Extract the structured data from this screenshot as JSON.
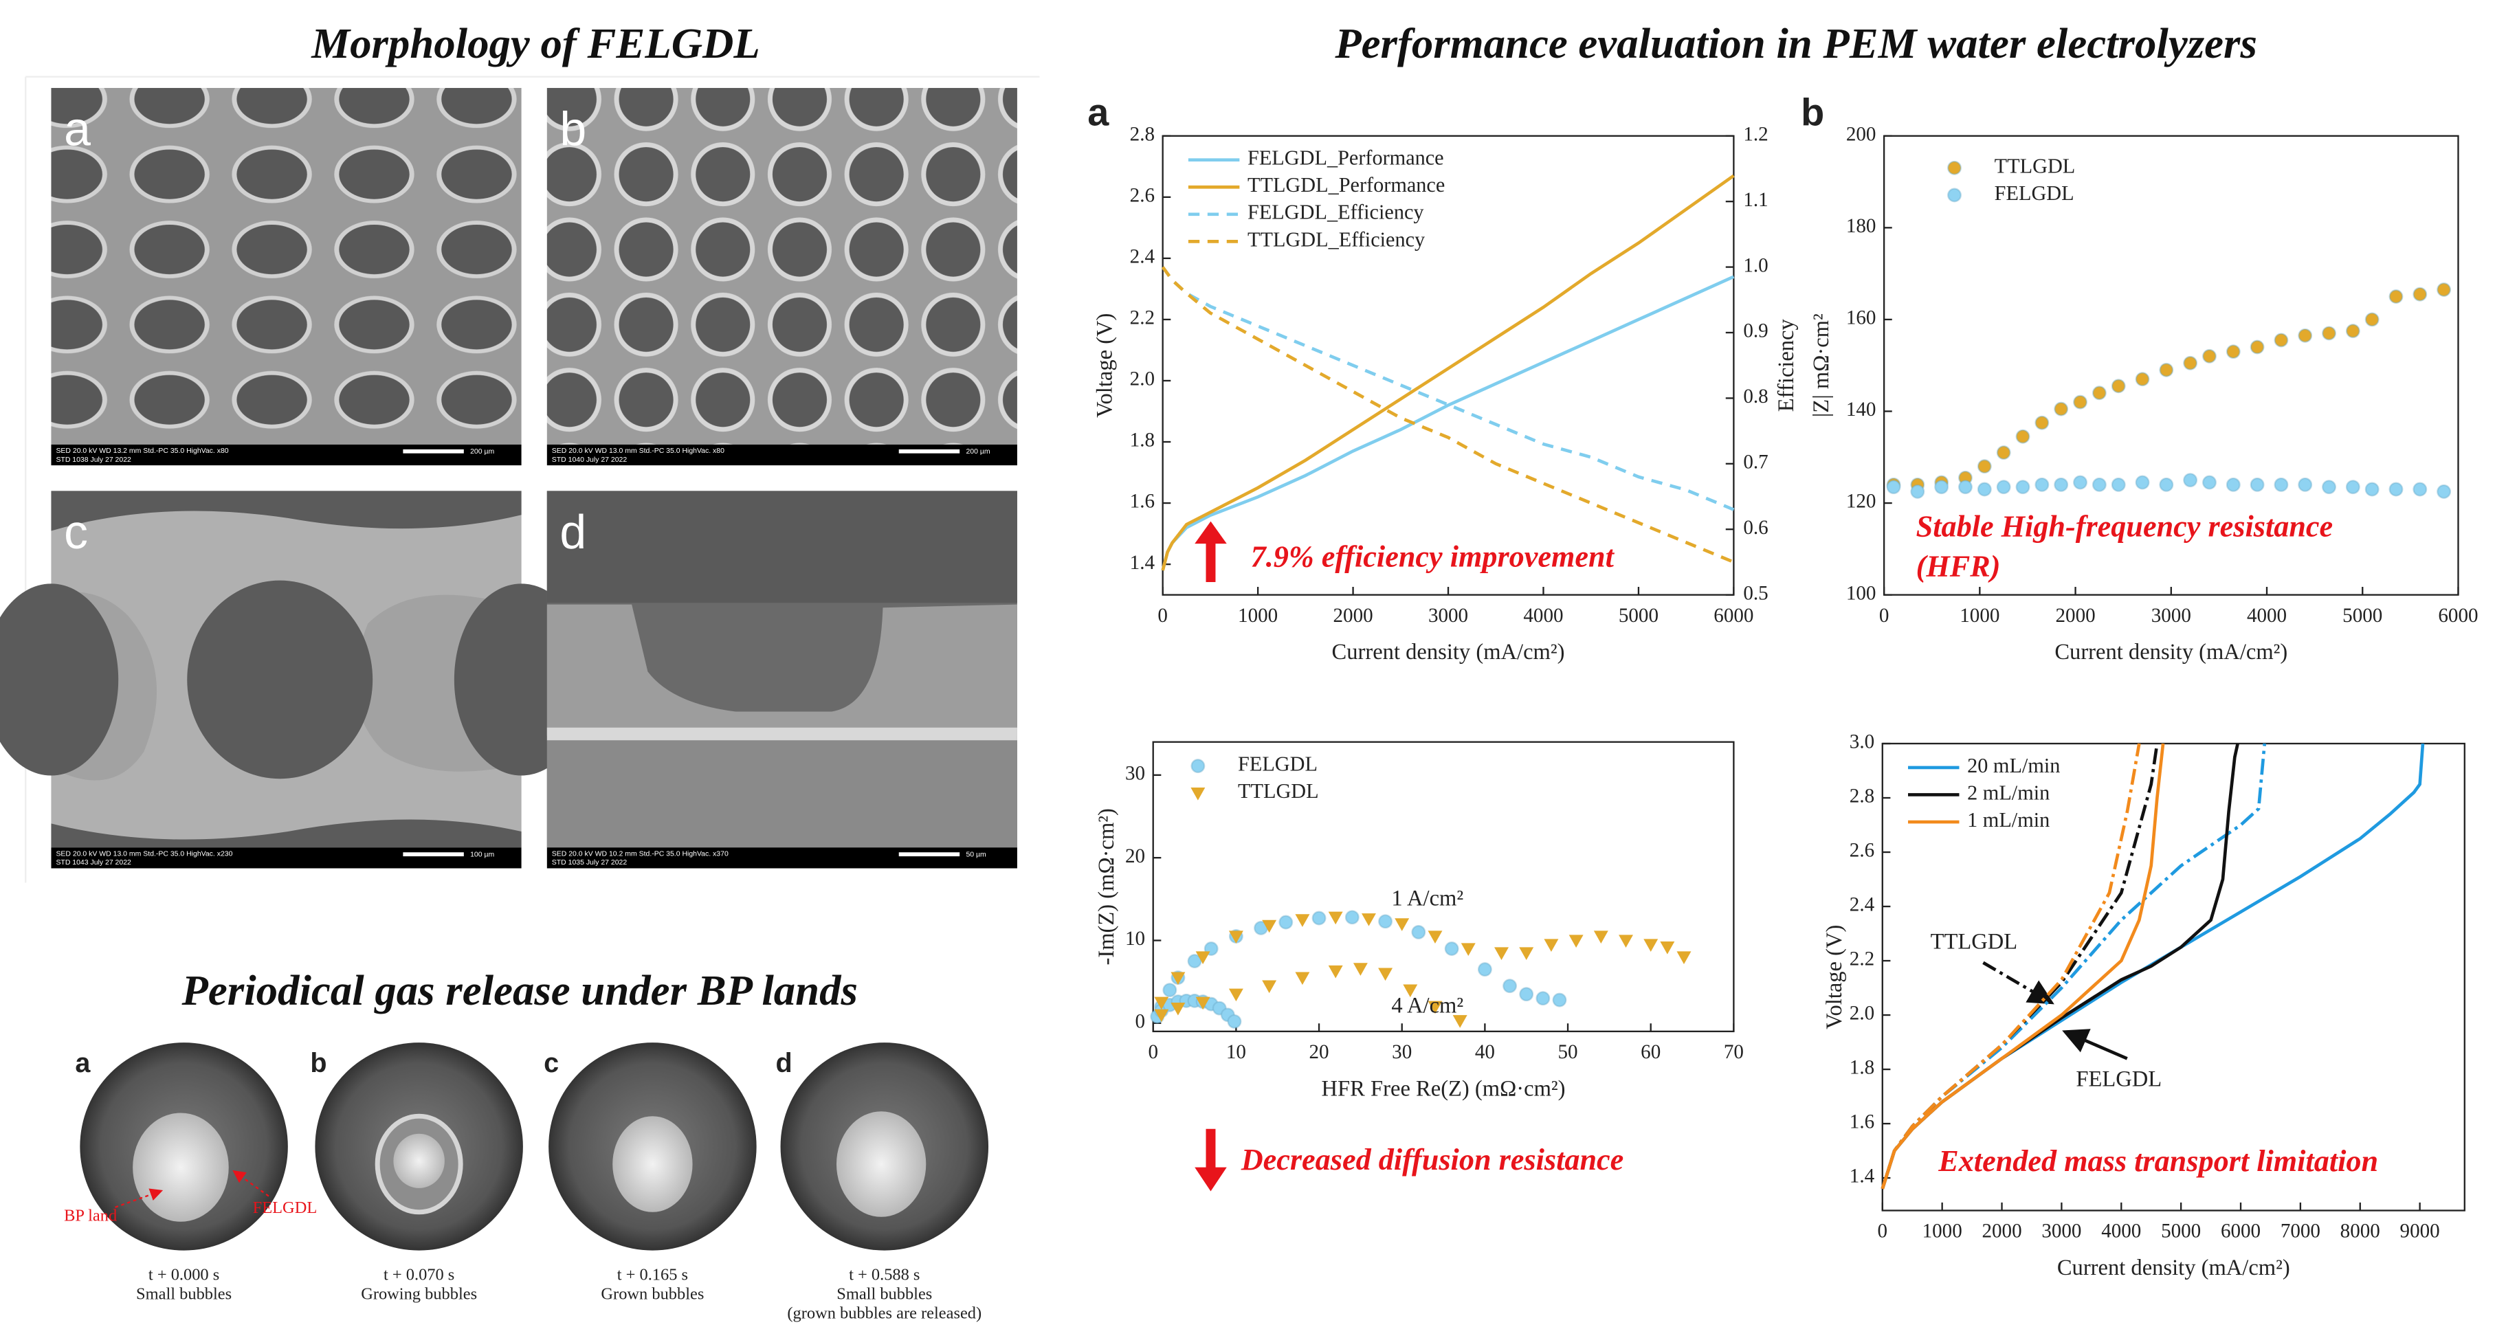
{
  "headings": {
    "morphology": "Morphology of FELGDL",
    "performance": "Performance evaluation in PEM water electrolyzers",
    "gas_release": "Periodical gas release under BP lands"
  },
  "sem_panels": [
    {
      "label": "a",
      "info": "SED 20.0 kV WD 13.2 mm Std.-PC 35.0 HighVac. x80",
      "id_date": "STD 1038 July 27 2022",
      "scale": "200 µm"
    },
    {
      "label": "b",
      "info": "SED 20.0 kV WD 13.0 mm Std.-PC 35.0 HighVac. x80",
      "id_date": "STD 1040 July 27 2022",
      "scale": "200 µm"
    },
    {
      "label": "c",
      "info": "SED 20.0 kV WD 13.0 mm Std.-PC 35.0 HighVac. x230",
      "id_date": "STD 1043 July 27 2022",
      "scale": "100 µm"
    },
    {
      "label": "d",
      "info": "SED 20.0 kV WD 10.2 mm Std.-PC 35.0 HighVac. x370",
      "id_date": "STD 1035 July 27 2022",
      "scale": "50 µm"
    }
  ],
  "gas_frames": [
    {
      "label": "a",
      "time": "t + 0.000 s",
      "caption": [
        "Small bubbles"
      ]
    },
    {
      "label": "b",
      "time": "t + 0.070 s",
      "caption": [
        "Growing bubbles"
      ]
    },
    {
      "label": "c",
      "time": "t + 0.165 s",
      "caption": [
        "Grown bubbles"
      ]
    },
    {
      "label": "d",
      "time": "t + 0.588 s",
      "caption": [
        "Small bubbles",
        "(grown bubbles are released)"
      ]
    }
  ],
  "gas_annotations": {
    "bp_land": "BP land",
    "felgdl": "FELGDL"
  },
  "chart_data": [
    {
      "type": "line",
      "panel_label": "a",
      "x_label": "Current density (mA/cm²)",
      "y_label": "Voltage (V)",
      "y2_label": "Efficiency",
      "legend": "upper left",
      "x": [
        0,
        50,
        100,
        250,
        500,
        1000,
        1500,
        2000,
        2500,
        3000,
        3500,
        4000,
        4500,
        5000,
        5500,
        6000
      ],
      "series": [
        {
          "name": "FELGDL_Performance",
          "color": "#7fcdee",
          "style": "solid",
          "values": [
            1.38,
            1.44,
            1.47,
            1.52,
            1.56,
            1.62,
            1.69,
            1.77,
            1.84,
            1.92,
            1.99,
            2.06,
            2.13,
            2.2,
            2.27,
            2.34
          ]
        },
        {
          "name": "TTLGDL_Performance",
          "color": "#e3a92b",
          "style": "solid",
          "values": [
            1.38,
            1.44,
            1.47,
            1.53,
            1.57,
            1.65,
            1.74,
            1.84,
            1.94,
            2.04,
            2.14,
            2.24,
            2.35,
            2.45,
            2.56,
            2.67
          ]
        },
        {
          "name": "FELGDL_Efficiency",
          "color": "#7fcdee",
          "style": "dashed",
          "axis": "y2",
          "values": [
            1.0,
            0.99,
            0.98,
            0.96,
            0.94,
            0.91,
            0.88,
            0.85,
            0.82,
            0.79,
            0.76,
            0.73,
            0.71,
            0.68,
            0.66,
            0.63
          ]
        },
        {
          "name": "TTLGDL_Efficiency",
          "color": "#e3a92b",
          "style": "dashed",
          "axis": "y2",
          "values": [
            1.0,
            0.99,
            0.98,
            0.96,
            0.93,
            0.89,
            0.85,
            0.81,
            0.77,
            0.74,
            0.7,
            0.67,
            0.64,
            0.61,
            0.58,
            0.55
          ]
        }
      ],
      "xlim": [
        0,
        6000
      ],
      "xticks": [
        0,
        1000,
        2000,
        3000,
        4000,
        5000,
        6000
      ],
      "ylim": [
        1.3,
        2.8
      ],
      "yticks": [
        1.4,
        1.6,
        1.8,
        {
          "value": 2,
          "label": "2.0"
        },
        2.2,
        2.4,
        2.6,
        2.8
      ],
      "y2lim": [
        0.5,
        1.2
      ],
      "y2ticks": [
        0.5,
        0.6,
        0.7,
        0.8,
        0.9,
        {
          "value": 1,
          "label": "1.0"
        },
        1.1,
        1.2
      ],
      "annotations": [
        {
          "text": "7.9% efficiency improvement",
          "color": "#e8141b"
        }
      ]
    },
    {
      "type": "scatter",
      "panel_label": "b",
      "x_label": "Current density (mA/cm²)",
      "y_label": "|Z| mΩ·cm²",
      "legend": "upper left",
      "x": [
        100,
        350,
        600,
        850,
        1050,
        1250,
        1450,
        1650,
        1850,
        2050,
        2250,
        2450,
        2700,
        2950,
        3200,
        3400,
        3650,
        3900,
        4150,
        4400,
        4650,
        4900,
        5100,
        5350,
        5600,
        5850
      ],
      "series": [
        {
          "name": "TTLGDL",
          "color": "#e3a92b",
          "marker": "circle",
          "values": [
            124,
            124,
            124.5,
            125.5,
            128,
            131,
            134.5,
            137.5,
            140.5,
            142,
            144,
            145.5,
            147,
            149,
            150.5,
            152,
            153,
            154,
            155.5,
            156.5,
            157,
            157.5,
            160,
            165,
            165.5,
            166.5
          ]
        },
        {
          "name": "FELGDL",
          "color": "#8fd3f2",
          "marker": "circle",
          "values": [
            123.5,
            122.5,
            123.5,
            123.5,
            123,
            123.5,
            123.5,
            124,
            124,
            124.5,
            124,
            124,
            124.5,
            124,
            125,
            124.5,
            124,
            124,
            124,
            124,
            123.5,
            123.5,
            123,
            123,
            123,
            122.5
          ]
        }
      ],
      "xlim": [
        0,
        6000
      ],
      "xticks": [
        0,
        1000,
        2000,
        3000,
        4000,
        5000,
        6000
      ],
      "ylim": [
        100,
        200
      ],
      "yticks": [
        100,
        120,
        140,
        160,
        180,
        200
      ],
      "annotations": [
        {
          "text": "Stable High-frequency resistance",
          "color": "#e8141b"
        },
        {
          "text": "(HFR)",
          "color": "#e8141b"
        }
      ]
    },
    {
      "type": "scatter",
      "x_label": "HFR Free Re(Z) (mΩ·cm²)",
      "y_label": "-Im(Z) (mΩ·cm²)",
      "legend": "upper left",
      "series": [
        {
          "name": "FELGDL",
          "color": "#8fd3f2",
          "marker": "circle",
          "x": [
            1,
            2,
            3,
            5,
            7,
            10,
            13,
            16,
            20,
            24,
            28,
            32,
            36,
            40,
            43,
            45,
            47,
            49,
            0.5,
            1,
            2,
            3,
            4,
            5,
            6,
            7,
            8,
            9,
            9.8
          ],
          "values": [
            2,
            4,
            5.5,
            7.5,
            9,
            10.5,
            11.5,
            12.2,
            12.7,
            12.8,
            12.3,
            11,
            9,
            6.5,
            4.5,
            3.5,
            3,
            2.8,
            0.8,
            1.5,
            2.2,
            2.6,
            2.7,
            2.7,
            2.6,
            2.3,
            1.8,
            1,
            0.2
          ]
        },
        {
          "name": "TTLGDL",
          "color": "#e3a92b",
          "marker": "triangle",
          "x": [
            1,
            3,
            6,
            10,
            14,
            18,
            22,
            26,
            30,
            34,
            38,
            42,
            45,
            48,
            51,
            54,
            57,
            60,
            62,
            64,
            1,
            3,
            6,
            10,
            14,
            18,
            22,
            25,
            28,
            31,
            34,
            37
          ],
          "values": [
            2.5,
            5.5,
            8,
            10.5,
            11.8,
            12.5,
            12.8,
            12.6,
            12,
            10.5,
            9,
            8.5,
            8.5,
            9.5,
            10,
            10.5,
            10,
            9.5,
            9.2,
            8,
            1,
            1.8,
            2.5,
            3.5,
            4.5,
            5.5,
            6.3,
            6.6,
            6,
            4,
            2,
            0.3
          ]
        }
      ],
      "xlim": [
        0,
        70
      ],
      "xticks": [
        0,
        10,
        20,
        30,
        40,
        50,
        60,
        70
      ],
      "ylim": [
        -1,
        34
      ],
      "yticks": [
        0,
        10,
        20,
        30
      ],
      "annotations": [
        {
          "text": "1 A/cm²",
          "color": "#222222"
        },
        {
          "text": "4 A/cm²",
          "color": "#222222"
        },
        {
          "text": "Decreased diffusion resistance",
          "color": "#e8141b"
        }
      ]
    },
    {
      "type": "line",
      "x_label": "Current density (mA/cm²)",
      "y_label": "Voltage (V)",
      "legend": "upper left",
      "series": [
        {
          "name": "20 mL/min",
          "color": "#1f9ae0",
          "solid": {
            "x": [
              0,
              200,
              500,
              1000,
              2000,
              3000,
              4000,
              5000,
              6000,
              7000,
              8000,
              8500,
              8900,
              9000,
              9050
            ],
            "values": [
              1.36,
              1.5,
              1.58,
              1.68,
              1.84,
              1.98,
              2.12,
              2.25,
              2.38,
              2.51,
              2.65,
              2.74,
              2.82,
              2.85,
              3.0
            ]
          },
          "dashdot": {
            "x": [
              0,
              200,
              500,
              1000,
              2000,
              3000,
              4000,
              5000,
              6000,
              6300,
              6400
            ],
            "values": [
              1.36,
              1.5,
              1.59,
              1.7,
              1.88,
              2.1,
              2.35,
              2.55,
              2.7,
              2.76,
              3.0
            ]
          }
        },
        {
          "name": "2 mL/min",
          "color": "#111111",
          "solid": {
            "x": [
              0,
              200,
              500,
              1000,
              2000,
              3000,
              4000,
              4500,
              5000,
              5500,
              5700,
              5800,
              5900,
              5950
            ],
            "values": [
              1.36,
              1.5,
              1.58,
              1.68,
              1.84,
              1.99,
              2.13,
              2.18,
              2.25,
              2.35,
              2.5,
              2.75,
              2.95,
              3.0
            ]
          },
          "dashdot": {
            "x": [
              0,
              200,
              500,
              1000,
              2000,
              3000,
              4000,
              4500,
              4600
            ],
            "values": [
              1.36,
              1.5,
              1.59,
              1.7,
              1.89,
              2.12,
              2.45,
              2.85,
              3.0
            ]
          }
        },
        {
          "name": "1 mL/min",
          "color": "#f28a1c",
          "solid": {
            "x": [
              0,
              200,
              500,
              1000,
              2000,
              3000,
              4000,
              4300,
              4500,
              4600,
              4700
            ],
            "values": [
              1.36,
              1.5,
              1.58,
              1.68,
              1.84,
              2.0,
              2.2,
              2.35,
              2.55,
              2.8,
              3.0
            ]
          },
          "dashdot": {
            "x": [
              0,
              200,
              500,
              1000,
              2000,
              3000,
              3800,
              4100,
              4300
            ],
            "values": [
              1.36,
              1.5,
              1.59,
              1.7,
              1.89,
              2.13,
              2.45,
              2.75,
              3.0
            ]
          }
        }
      ],
      "xlim": [
        0,
        9750
      ],
      "xticks": [
        0,
        1000,
        2000,
        3000,
        4000,
        5000,
        6000,
        7000,
        8000,
        9000
      ],
      "ylim": [
        1.28,
        3.0
      ],
      "yticks": [
        1.4,
        1.6,
        1.8,
        {
          "value": 2,
          "label": "2.0"
        },
        2.2,
        2.4,
        2.6,
        2.8,
        {
          "value": 3,
          "label": "3.0"
        }
      ],
      "annotations": [
        {
          "text": "TTLGDL",
          "color": "#222222"
        },
        {
          "text": "FELGDL",
          "color": "#222222"
        },
        {
          "text": "Extended mass transport limitation",
          "color": "#e8141b"
        }
      ]
    }
  ]
}
